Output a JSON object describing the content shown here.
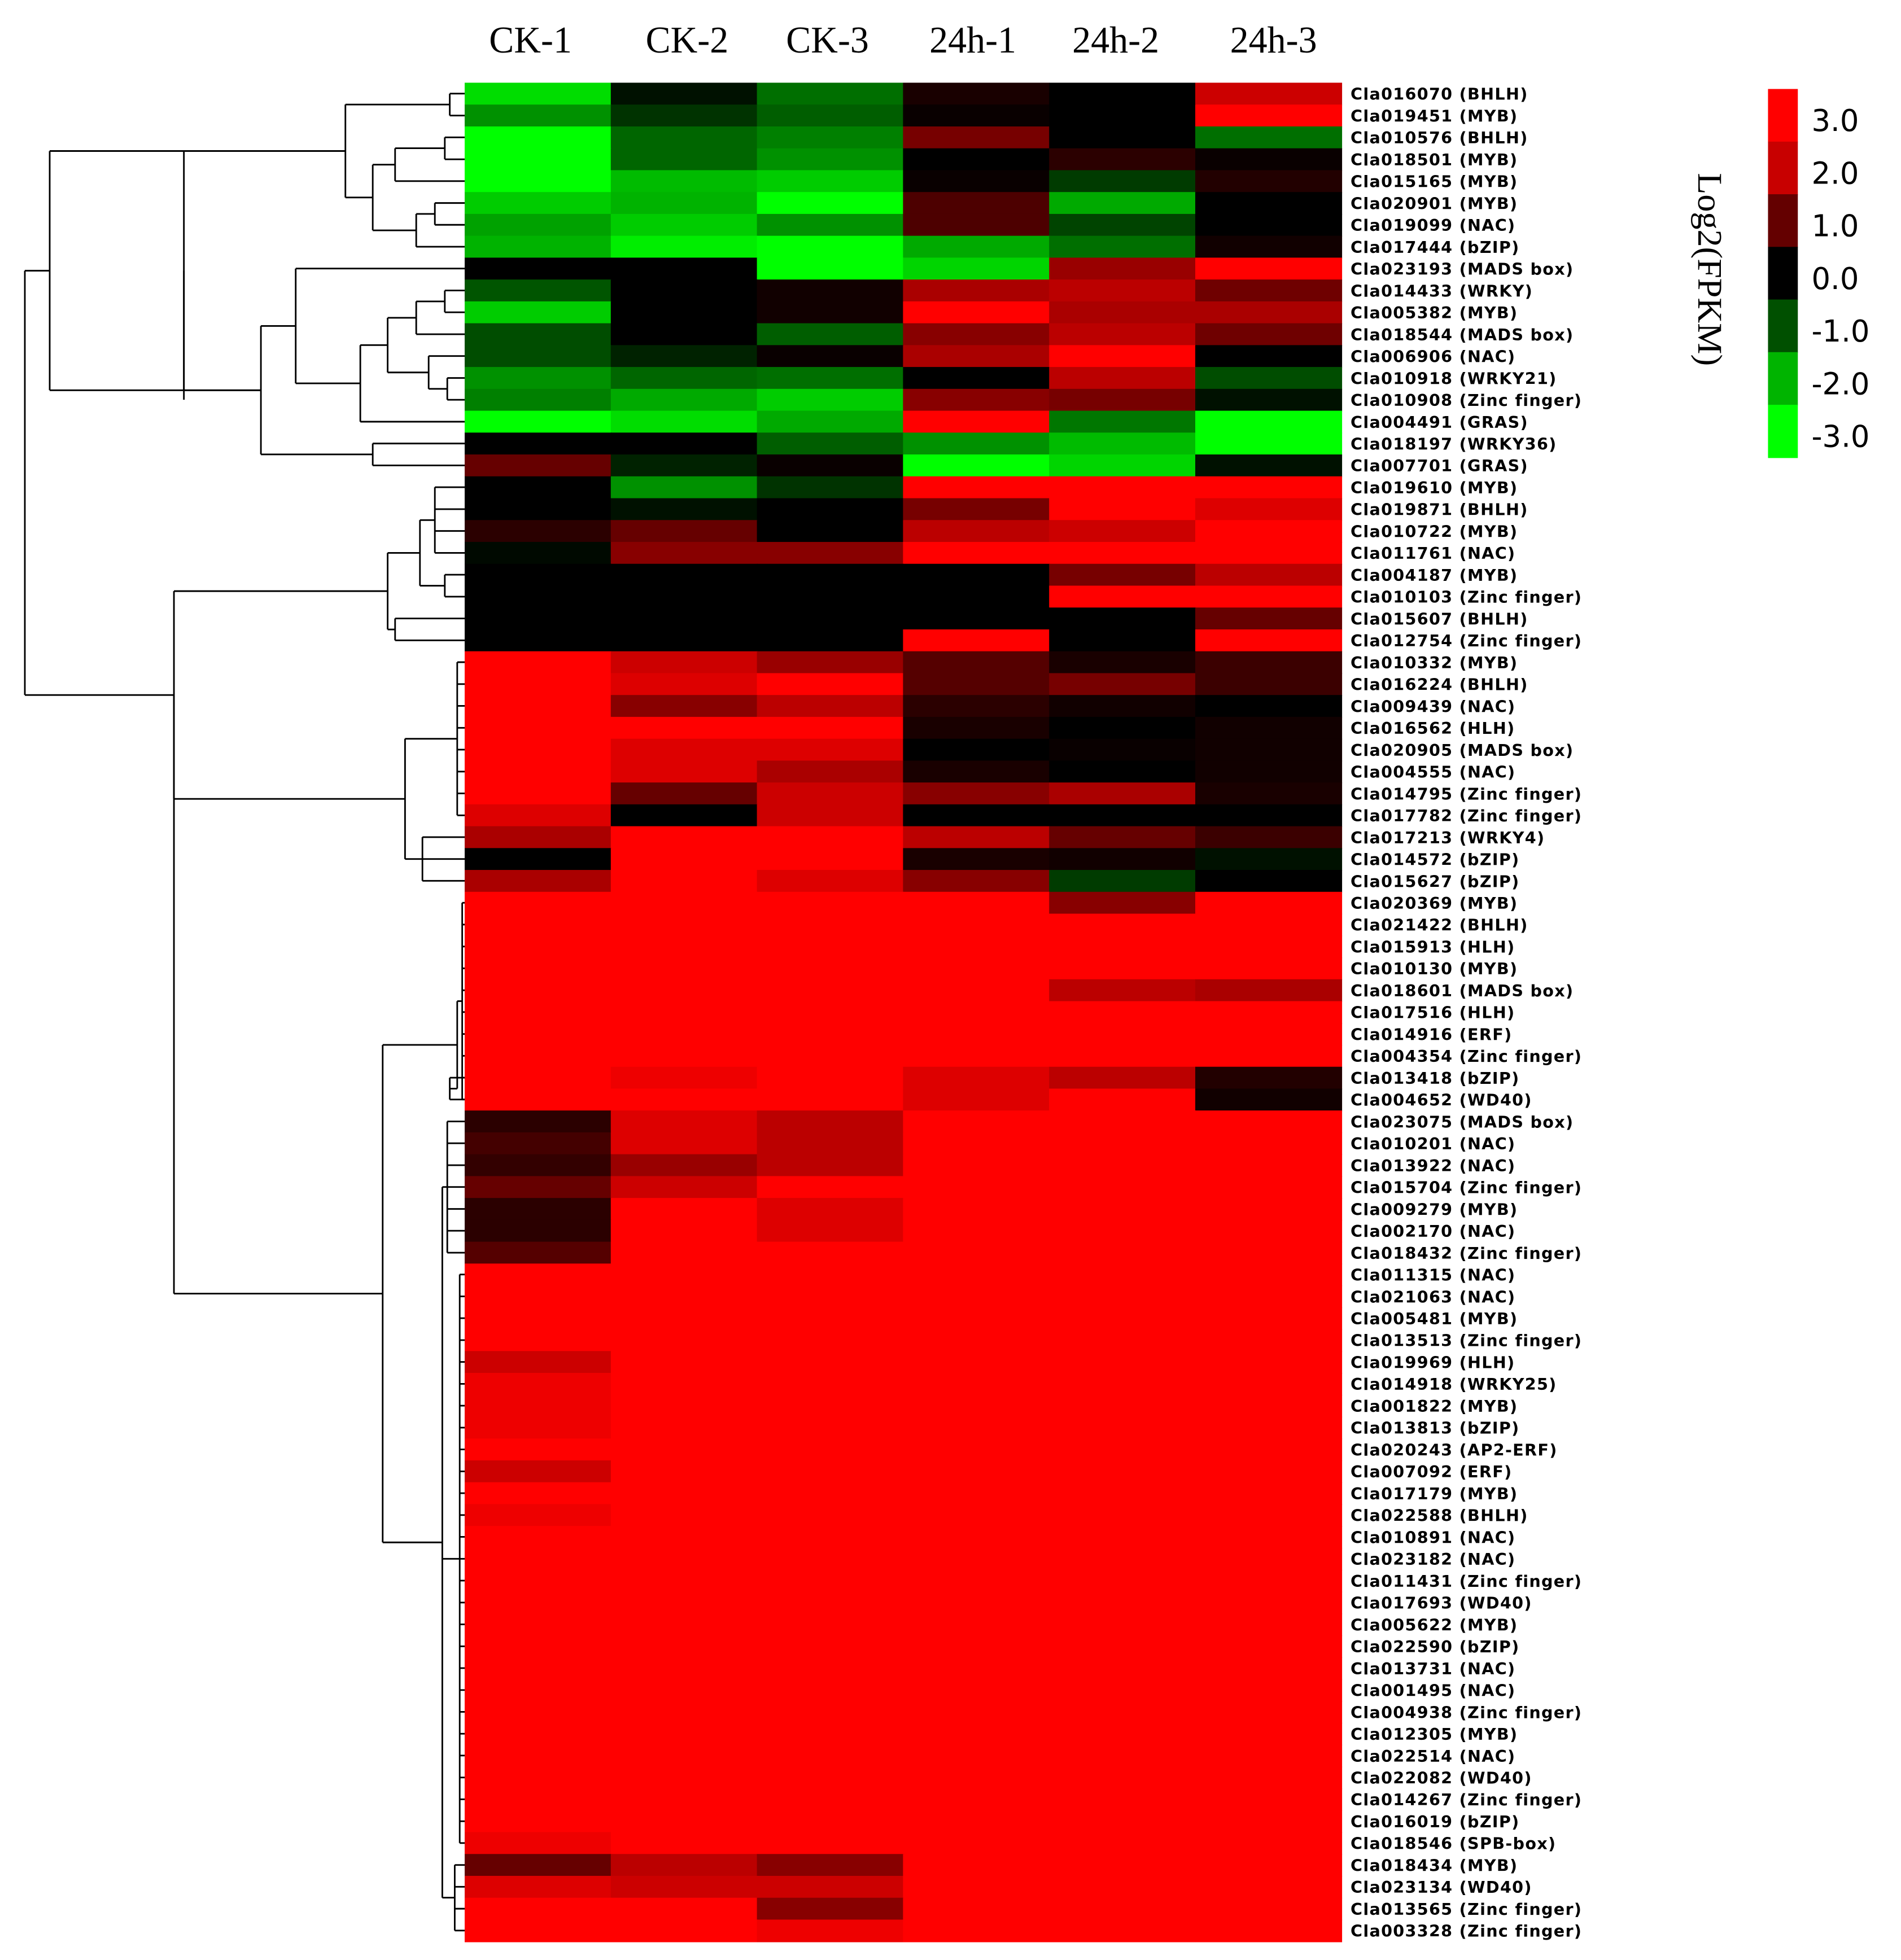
{
  "chart_data": {
    "type": "heatmap",
    "title": "",
    "columns": [
      "CK-1",
      "CK-2",
      "CK-3",
      "24h-1",
      "24h-2",
      "24h-3"
    ],
    "genes": [
      "Cla016070 (BHLH)",
      "Cla019451 (MYB)",
      "Cla010576 (BHLH)",
      "Cla018501 (MYB)",
      "Cla015165 (MYB)",
      "Cla020901 (MYB)",
      "Cla019099 (NAC)",
      "Cla017444 (bZIP)",
      "Cla023193 (MADS box)",
      "Cla014433 (WRKY)",
      "Cla005382 (MYB)",
      "Cla018544 (MADS box)",
      "Cla006906 (NAC)",
      "Cla010918 (WRKY21)",
      "Cla010908 (Zinc finger)",
      "Cla004491 (GRAS)",
      "Cla018197 (WRKY36)",
      "Cla007701 (GRAS)",
      "Cla019610 (MYB)",
      "Cla019871 (BHLH)",
      "Cla010722 (MYB)",
      "Cla011761 (NAC)",
      "Cla004187 (MYB)",
      "Cla010103 (Zinc finger)",
      "Cla015607 (BHLH)",
      "Cla012754 (Zinc finger)",
      "Cla010332 (MYB)",
      "Cla016224 (BHLH)",
      "Cla009439 (NAC)",
      "Cla016562 (HLH)",
      "Cla020905 (MADS box)",
      "Cla004555 (NAC)",
      "Cla014795 (Zinc finger)",
      "Cla017782 (Zinc finger)",
      "Cla017213 (WRKY4)",
      "Cla014572 (bZIP)",
      "Cla015627 (bZIP)",
      "Cla020369 (MYB)",
      "Cla021422 (BHLH)",
      "Cla015913 (HLH)",
      "Cla010130 (MYB)",
      "Cla018601 (MADS box)",
      "Cla017516 (HLH)",
      "Cla014916 (ERF)",
      "Cla004354 (Zinc finger)",
      "Cla013418 (bZIP)",
      "Cla004652 (WD40)",
      "Cla023075 (MADS box)",
      "Cla010201 (NAC)",
      "Cla013922 (NAC)",
      "Cla015704 (Zinc finger)",
      "Cla009279 (MYB)",
      "Cla002170 (NAC)",
      "Cla018432 (Zinc finger)",
      "Cla011315 (NAC)",
      "Cla021063 (NAC)",
      "Cla005481 (MYB)",
      "Cla013513 (Zinc finger)",
      "Cla019969 (HLH)",
      "Cla014918 (WRKY25)",
      "Cla001822 (MYB)",
      "Cla013813 (bZIP)",
      "Cla020243 (AP2-ERF)",
      "Cla007092 (ERF)",
      "Cla017179 (MYB)",
      "Cla022588 (BHLH)",
      "Cla010891 (NAC)",
      "Cla023182 (NAC)",
      "Cla011431 (Zinc finger)",
      "Cla017693 (WD40)",
      "Cla005622 (MYB)",
      "Cla022590 (bZIP)",
      "Cla013731 (NAC)",
      "Cla001495 (NAC)",
      "Cla004938 (Zinc finger)",
      "Cla012305 (MYB)",
      "Cla022514 (NAC)",
      "Cla022082 (WD40)",
      "Cla014267 (Zinc finger)",
      "Cla016019 (bZIP)",
      "Cla018546 (SPB-box)",
      "Cla018434 (MYB)",
      "Cla023134 (WD40)",
      "Cla013565 (Zinc finger)",
      "Cla003328 (Zinc finger)"
    ],
    "values": [
      [
        -2.6,
        -0.2,
        -1.3,
        0.3,
        0,
        2.4
      ],
      [
        -1.7,
        -0.6,
        -1.1,
        0.1,
        0,
        3.0
      ],
      [
        -3,
        -1.2,
        -1.5,
        1.4,
        0,
        -1.3
      ],
      [
        -3,
        -1.2,
        -1.7,
        0,
        0.5,
        0.1
      ],
      [
        -3,
        -2.2,
        -2.4,
        0.1,
        -0.7,
        0.4
      ],
      [
        -2.4,
        -2.1,
        -3,
        0.9,
        -2.0,
        0
      ],
      [
        -1.9,
        -2.4,
        -1.7,
        0.9,
        -0.8,
        0
      ],
      [
        -2.1,
        -2.8,
        -3,
        -2.0,
        -1.3,
        0.2
      ],
      [
        0,
        0,
        -3,
        -2.5,
        1.8,
        3.0
      ],
      [
        -1.0,
        0,
        0.2,
        2.0,
        2.2,
        1.3
      ],
      [
        -2.4,
        0,
        0.2,
        3.0,
        2.0,
        2.0
      ],
      [
        -0.9,
        0,
        -1.1,
        1.6,
        2.2,
        1.3
      ],
      [
        -0.9,
        -0.4,
        0.1,
        2.0,
        3.0,
        0
      ],
      [
        -1.7,
        -1.2,
        -1.3,
        0,
        2.2,
        -0.9
      ],
      [
        -1.5,
        -2.0,
        -2.4,
        1.6,
        1.4,
        -0.2
      ],
      [
        -3,
        -2.6,
        -2.0,
        3.0,
        -1.4,
        -3
      ],
      [
        0,
        0,
        -1.1,
        -1.7,
        -2.2,
        -3
      ],
      [
        1.2,
        -0.4,
        0.1,
        -3,
        -2.5,
        -0.2
      ],
      [
        0,
        -1.7,
        -0.6,
        3.0,
        3.0,
        3.0
      ],
      [
        0,
        -0.2,
        0,
        1.4,
        3.0,
        2.6
      ],
      [
        0.5,
        1.2,
        0,
        2.2,
        2.4,
        3.0
      ],
      [
        -0.1,
        1.6,
        1.6,
        3.0,
        3.0,
        3.0
      ],
      [
        0,
        0,
        0,
        0,
        1.4,
        2.2
      ],
      [
        0,
        0,
        0,
        0,
        3.0,
        3.0
      ],
      [
        0,
        0,
        0,
        0,
        0,
        1.2
      ],
      [
        0,
        0,
        0,
        3.0,
        0,
        3.0
      ],
      [
        3.0,
        2.4,
        1.8,
        1.0,
        0.3,
        0.7
      ],
      [
        3.0,
        2.6,
        3.0,
        1.0,
        1.4,
        0.7
      ],
      [
        3.0,
        1.6,
        2.2,
        0.5,
        0.2,
        0
      ],
      [
        3.0,
        3.0,
        3.0,
        0.3,
        0,
        0.2
      ],
      [
        3.0,
        2.6,
        2.6,
        0,
        0.1,
        0.2
      ],
      [
        3.0,
        2.6,
        2.0,
        0.3,
        0,
        0.2
      ],
      [
        3.0,
        1.2,
        2.4,
        1.6,
        2.0,
        0.3
      ],
      [
        2.6,
        0,
        2.4,
        0,
        0,
        0
      ],
      [
        2.0,
        3.0,
        3.0,
        2.2,
        1.2,
        0.7
      ],
      [
        0,
        3.0,
        3.0,
        0.3,
        0.2,
        -0.2
      ],
      [
        2.0,
        3.0,
        2.6,
        1.6,
        -0.7,
        0
      ],
      [
        3.0,
        3.0,
        3.0,
        3.0,
        1.6,
        3.0
      ],
      [
        3.0,
        3.0,
        3.0,
        3.0,
        3.0,
        3.0
      ],
      [
        3.0,
        3.0,
        3.0,
        3.0,
        3.0,
        3.0
      ],
      [
        3.0,
        3.0,
        3.0,
        3.0,
        3.0,
        3.0
      ],
      [
        3.0,
        3.0,
        3.0,
        3.0,
        2.2,
        2.0
      ],
      [
        3.0,
        3.0,
        3.0,
        3.0,
        3.0,
        3.0
      ],
      [
        3.0,
        3.0,
        3.0,
        3.0,
        3.0,
        3.0
      ],
      [
        3.0,
        3.0,
        3.0,
        3.0,
        3.0,
        3.0
      ],
      [
        3.0,
        2.8,
        3.0,
        2.6,
        2.2,
        0.4
      ],
      [
        3.0,
        3.0,
        3.0,
        2.6,
        3.0,
        0.2
      ],
      [
        0.5,
        2.6,
        2.2,
        3.0,
        3.0,
        3.0
      ],
      [
        0.8,
        2.6,
        2.2,
        3.0,
        3.0,
        3.0
      ],
      [
        0.6,
        1.8,
        2.2,
        3.0,
        3.0,
        3.0
      ],
      [
        1.2,
        2.4,
        3.0,
        3.0,
        3.0,
        3.0
      ],
      [
        0.5,
        3.0,
        2.6,
        3.0,
        3.0,
        3.0
      ],
      [
        0.5,
        3.0,
        2.6,
        3.0,
        3.0,
        3.0
      ],
      [
        1.0,
        3.0,
        3.0,
        3.0,
        3.0,
        3.0
      ],
      [
        3.0,
        3.0,
        3.0,
        3.0,
        3.0,
        3.0
      ],
      [
        3.0,
        3.0,
        3.0,
        3.0,
        3.0,
        3.0
      ],
      [
        3.0,
        3.0,
        3.0,
        3.0,
        3.0,
        3.0
      ],
      [
        3.0,
        3.0,
        3.0,
        3.0,
        3.0,
        3.0
      ],
      [
        2.4,
        3.0,
        3.0,
        3.0,
        3.0,
        3.0
      ],
      [
        2.8,
        3.0,
        3.0,
        3.0,
        3.0,
        3.0
      ],
      [
        2.8,
        3.0,
        3.0,
        3.0,
        3.0,
        3.0
      ],
      [
        2.8,
        3.0,
        3.0,
        3.0,
        3.0,
        3.0
      ],
      [
        3.0,
        3.0,
        3.0,
        3.0,
        3.0,
        3.0
      ],
      [
        2.4,
        3.0,
        3.0,
        3.0,
        3.0,
        3.0
      ],
      [
        3.0,
        3.0,
        3.0,
        3.0,
        3.0,
        3.0
      ],
      [
        2.8,
        3.0,
        3.0,
        3.0,
        3.0,
        3.0
      ],
      [
        3.0,
        3.0,
        3.0,
        3.0,
        3.0,
        3.0
      ],
      [
        3.0,
        3.0,
        3.0,
        3.0,
        3.0,
        3.0
      ],
      [
        3.0,
        3.0,
        3.0,
        3.0,
        3.0,
        3.0
      ],
      [
        3.0,
        3.0,
        3.0,
        3.0,
        3.0,
        3.0
      ],
      [
        3.0,
        3.0,
        3.0,
        3.0,
        3.0,
        3.0
      ],
      [
        3.0,
        3.0,
        3.0,
        3.0,
        3.0,
        3.0
      ],
      [
        3.0,
        3.0,
        3.0,
        3.0,
        3.0,
        3.0
      ],
      [
        3.0,
        3.0,
        3.0,
        3.0,
        3.0,
        3.0
      ],
      [
        3.0,
        3.0,
        3.0,
        3.0,
        3.0,
        3.0
      ],
      [
        3.0,
        3.0,
        3.0,
        3.0,
        3.0,
        3.0
      ],
      [
        3.0,
        3.0,
        3.0,
        3.0,
        3.0,
        3.0
      ],
      [
        3.0,
        3.0,
        3.0,
        3.0,
        3.0,
        3.0
      ],
      [
        3.0,
        3.0,
        3.0,
        3.0,
        3.0,
        3.0
      ],
      [
        3.0,
        3.0,
        3.0,
        3.0,
        3.0,
        3.0
      ],
      [
        2.8,
        3.0,
        3.0,
        3.0,
        3.0,
        3.0
      ],
      [
        1.2,
        2.2,
        1.6,
        3.0,
        3.0,
        3.0
      ],
      [
        2.6,
        2.4,
        2.4,
        3.0,
        3.0,
        3.0
      ],
      [
        3.0,
        3.0,
        1.6,
        3.0,
        3.0,
        3.0
      ],
      [
        3.0,
        3.0,
        2.8,
        3.0,
        3.0,
        3.0
      ]
    ],
    "legend": {
      "title": "Log2(FPKM)",
      "ticks": [
        "3.0",
        "2.0",
        "1.0",
        "0.0",
        "-1.0",
        "-2.0",
        "-3.0"
      ],
      "colors": [
        "#ff0000",
        "#c80000",
        "#640000",
        "#000000",
        "#005000",
        "#00b400",
        "#00ff00"
      ],
      "range": [
        -3,
        3
      ]
    },
    "dendrogram": "rows (hierarchical clustering)"
  }
}
